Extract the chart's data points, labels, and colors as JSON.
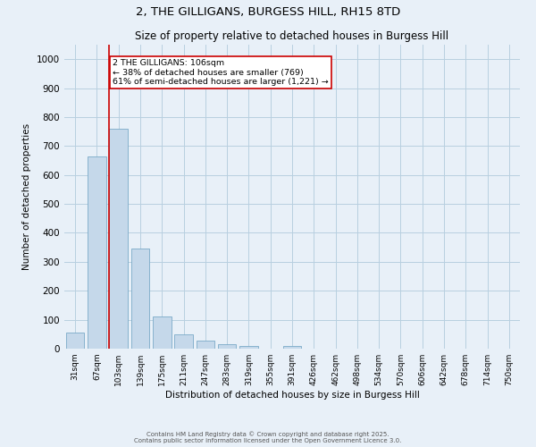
{
  "title1": "2, THE GILLIGANS, BURGESS HILL, RH15 8TD",
  "title2": "Size of property relative to detached houses in Burgess Hill",
  "xlabel": "Distribution of detached houses by size in Burgess Hill",
  "ylabel": "Number of detached properties",
  "bar_labels": [
    "31sqm",
    "67sqm",
    "103sqm",
    "139sqm",
    "175sqm",
    "211sqm",
    "247sqm",
    "283sqm",
    "319sqm",
    "355sqm",
    "391sqm",
    "426sqm",
    "462sqm",
    "498sqm",
    "534sqm",
    "570sqm",
    "606sqm",
    "642sqm",
    "678sqm",
    "714sqm",
    "750sqm"
  ],
  "bar_values": [
    55,
    665,
    760,
    345,
    110,
    50,
    28,
    15,
    10,
    0,
    8,
    0,
    0,
    0,
    0,
    0,
    0,
    0,
    0,
    0,
    0
  ],
  "bar_color": "#c5d8ea",
  "bar_edgecolor": "#7aaac8",
  "bar_linewidth": 0.6,
  "redline_color": "#cc0000",
  "annotation_text": "2 THE GILLIGANS: 106sqm\n← 38% of detached houses are smaller (769)\n61% of semi-detached houses are larger (1,221) →",
  "annotation_box_edgecolor": "#cc0000",
  "annotation_box_facecolor": "#ffffff",
  "ylim": [
    0,
    1050
  ],
  "yticks": [
    0,
    100,
    200,
    300,
    400,
    500,
    600,
    700,
    800,
    900,
    1000
  ],
  "grid_color": "#b8cfe0",
  "bg_color": "#e8f0f8",
  "footer_text1": "Contains HM Land Registry data © Crown copyright and database right 2025.",
  "footer_text2": "Contains public sector information licensed under the Open Government Licence 3.0.",
  "title_fontsize": 9.5,
  "subtitle_fontsize": 8.5
}
